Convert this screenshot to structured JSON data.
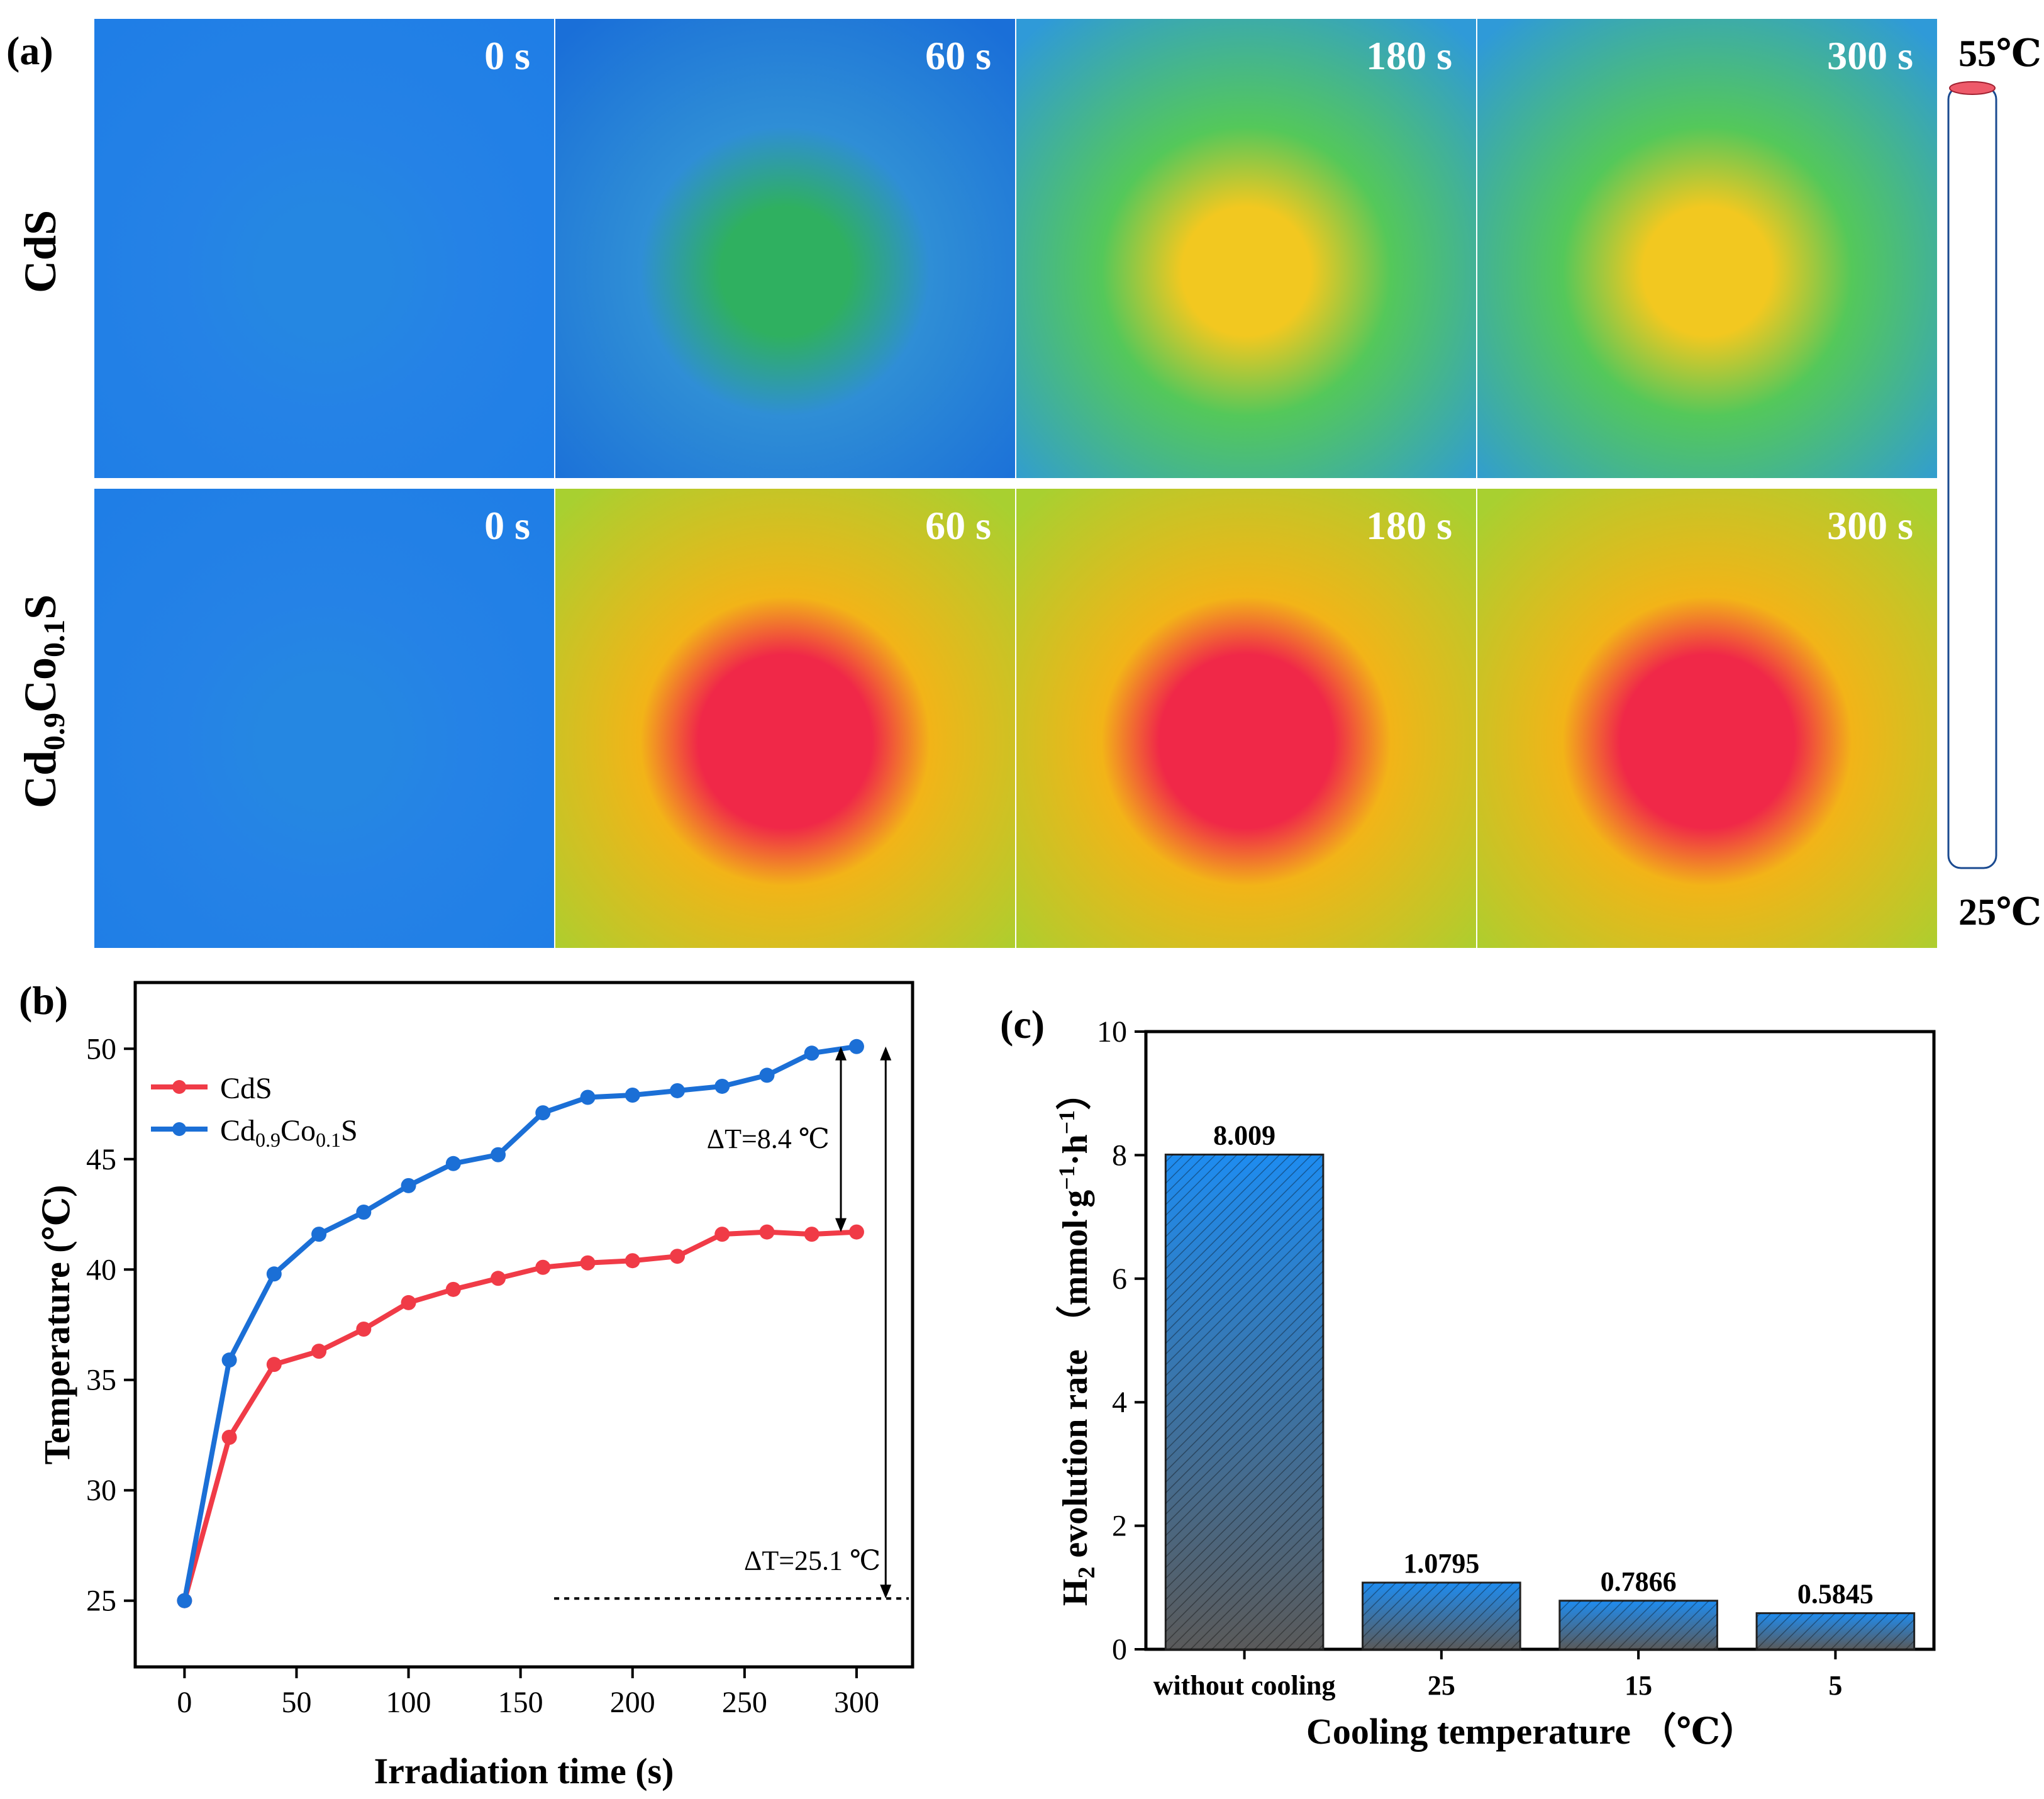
{
  "panel_a": {
    "label": "(a)",
    "rows": [
      {
        "sample": "CdS",
        "cells": [
          {
            "time": "0 s",
            "hot": 0.0
          },
          {
            "time": "60 s",
            "hot": 0.32
          },
          {
            "time": "180 s",
            "hot": 0.65
          },
          {
            "time": "300 s",
            "hot": 0.7
          }
        ]
      },
      {
        "sample_main": "Cd",
        "sub1": "0.9",
        "mid": "Co",
        "sub2": "0.1",
        "tail": "S",
        "cells": [
          {
            "time": "0 s",
            "hot": 0.03
          },
          {
            "time": "60 s",
            "hot": 0.95
          },
          {
            "time": "180 s",
            "hot": 1.0
          },
          {
            "time": "300 s",
            "hot": 1.0
          }
        ]
      }
    ],
    "colorbar": {
      "max_label": "55℃",
      "min_label": "25℃",
      "colors": [
        "#1d7cf0",
        "#1aa0a0",
        "#2bb84a",
        "#d8e020",
        "#f6e000",
        "#f7a020",
        "#f04028",
        "#ee1c3a"
      ]
    }
  },
  "chart_data": [
    {
      "type": "line",
      "panel": "(b)",
      "xlabel": "Irradiation time (s)",
      "ylabel": "Temperature (℃)",
      "xlim": [
        -22,
        325
      ],
      "ylim": [
        22,
        53
      ],
      "xticks": [
        0,
        50,
        100,
        150,
        200,
        250,
        300
      ],
      "yticks": [
        25,
        30,
        35,
        40,
        45,
        50
      ],
      "x": [
        0,
        20,
        40,
        60,
        80,
        100,
        120,
        140,
        160,
        180,
        200,
        220,
        240,
        260,
        280,
        300
      ],
      "series": [
        {
          "name": "CdS",
          "color": "#f03b47",
          "values": [
            25.0,
            32.4,
            35.7,
            36.3,
            37.3,
            38.5,
            39.1,
            39.6,
            40.1,
            40.3,
            40.4,
            40.6,
            41.6,
            41.7,
            41.6,
            41.7
          ]
        },
        {
          "name_main": "Cd",
          "name_sub1": "0.9",
          "name_mid": "Co",
          "name_sub2": "0.1",
          "name_tail": "S",
          "color": "#1b6fd6",
          "values": [
            25.0,
            35.9,
            39.8,
            41.6,
            42.6,
            43.8,
            44.8,
            45.2,
            47.1,
            47.8,
            47.9,
            48.1,
            48.3,
            48.8,
            49.8,
            50.1
          ]
        }
      ],
      "annotations": {
        "delta1": "ΔT=8.4 ℃",
        "delta2": "ΔT=25.1 ℃",
        "baseline": 25.1,
        "baseline_from_x": 165
      }
    },
    {
      "type": "bar",
      "panel": "(c)",
      "categories": [
        "without cooling",
        "25",
        "15",
        "5"
      ],
      "values": [
        8.009,
        1.0795,
        0.7866,
        0.5845
      ],
      "value_labels": [
        "8.009",
        "1.0795",
        "0.7866",
        "0.5845"
      ],
      "xlabel": "Cooling temperature （℃）",
      "ylabel_h": "H",
      "ylabel_sub": "2",
      "ylabel_rest": " evolution rate （mmol·g",
      "ylabel_sup1": "−1",
      "ylabel_mid": "·h",
      "ylabel_sup2": "−1",
      "ylabel_close": "）",
      "ylim": [
        0,
        10
      ],
      "yticks": [
        0,
        2,
        4,
        6,
        8,
        10
      ]
    }
  ]
}
